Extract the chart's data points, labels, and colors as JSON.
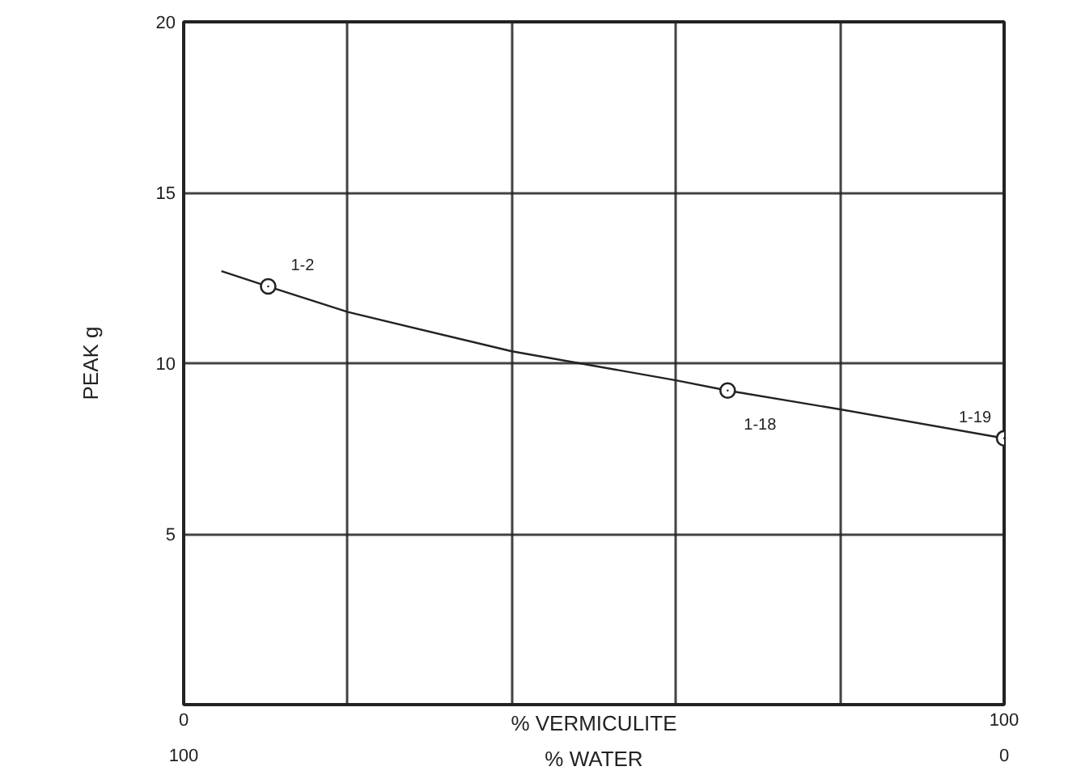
{
  "chart_data": {
    "type": "line",
    "xlabel": "% VERMICULITE",
    "x2label": "% WATER",
    "ylabel": "PEAK g",
    "series": [
      {
        "color": "#222222",
        "marker": "none",
        "x": [
          4.6,
          10.3,
          20,
          40,
          60,
          66.3,
          80,
          100
        ],
        "values": [
          12.7,
          12.25,
          11.5,
          10.35,
          9.5,
          9.2,
          8.65,
          7.8
        ]
      },
      {
        "type": "scatter",
        "color": "#222222",
        "marker": "circle",
        "x": [
          10.3,
          66.3,
          100
        ],
        "values": [
          12.25,
          9.2,
          7.8
        ]
      }
    ],
    "annotations": [
      {
        "text": "1-2",
        "x": 10.3,
        "y": 12.25
      },
      {
        "text": "1-18",
        "x": 66.3,
        "y": 9.2
      },
      {
        "text": "1-19",
        "x": 100,
        "y": 7.8
      }
    ],
    "xlim": [
      0,
      100
    ],
    "xticks": [
      0,
      {
        "value": 20,
        "label": null
      },
      {
        "value": 40,
        "label": null
      },
      {
        "value": 60,
        "label": null
      },
      {
        "value": 80,
        "label": null
      },
      100
    ],
    "x2lim": [
      100,
      0
    ],
    "x2ticks": [
      100,
      0
    ],
    "ylim": [
      0,
      20
    ],
    "yticks": [
      {
        "value": 0,
        "label": null
      },
      5,
      10,
      15,
      20
    ],
    "grid": true
  }
}
